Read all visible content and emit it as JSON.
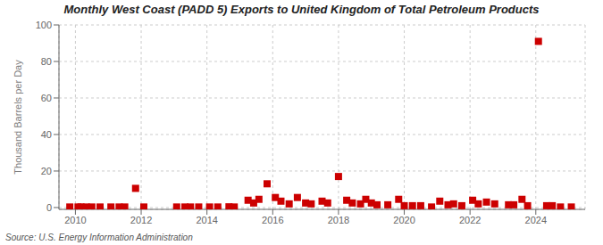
{
  "chart_data": {
    "type": "scatter",
    "title": "Monthly West Coast (PADD 5) Exports to United Kingdom of Total Petroleum Products",
    "y_label": "Thousand Barrels per Day",
    "annotations": [
      "Source: U.S. Energy Information Administration"
    ],
    "color": "#cc0000",
    "marker": "square",
    "grid": true,
    "xlim": [
      2009.5,
      2025.5
    ],
    "ylim": [
      -1,
      100
    ],
    "xticks": [
      2010,
      2012,
      2014,
      2016,
      2018,
      2020,
      2022,
      2024
    ],
    "yticks": [
      0,
      20,
      40,
      60,
      80,
      100
    ],
    "x": [
      2011.83,
      2014.67,
      2015.25,
      2015.42,
      2015.58,
      2015.83,
      2016.08,
      2016.25,
      2016.5,
      2016.75,
      2017.0,
      2017.17,
      2017.5,
      2017.67,
      2018.0,
      2018.25,
      2018.42,
      2018.67,
      2018.83,
      2019.0,
      2019.17,
      2019.5,
      2019.83,
      2020.0,
      2020.25,
      2020.5,
      2021.08,
      2021.33,
      2021.5,
      2021.75,
      2022.08,
      2022.25,
      2022.5,
      2022.75,
      2023.17,
      2023.33,
      2023.58,
      2023.75,
      2024.08,
      2024.33,
      2024.5,
      2009.83,
      2010.08,
      2010.17,
      2010.33,
      2010.5,
      2010.75,
      2011.08,
      2011.33,
      2011.5,
      2012.08,
      2013.08,
      2013.33,
      2013.5,
      2013.75,
      2014.08,
      2014.33,
      2014.83,
      2020.83,
      2024.75,
      2025.08
    ],
    "values": [
      10.5,
      0.4,
      4.0,
      2.5,
      4.5,
      13.0,
      5.5,
      3.5,
      2.0,
      5.5,
      2.5,
      2.0,
      3.5,
      2.5,
      17.0,
      4.0,
      2.5,
      2.0,
      4.5,
      2.5,
      1.5,
      1.5,
      4.5,
      1.0,
      1.0,
      1.0,
      3.5,
      1.5,
      2.0,
      1.0,
      4.0,
      2.0,
      3.0,
      2.0,
      1.5,
      1.5,
      4.5,
      1.0,
      91.0,
      1.0,
      1.0,
      0.3,
      0.3,
      0.3,
      0.3,
      0.3,
      0.3,
      0.3,
      0.3,
      0.3,
      0.3,
      0.3,
      0.3,
      0.3,
      0.3,
      0.3,
      0.3,
      0.3,
      0.3,
      0.3,
      0.3
    ]
  }
}
